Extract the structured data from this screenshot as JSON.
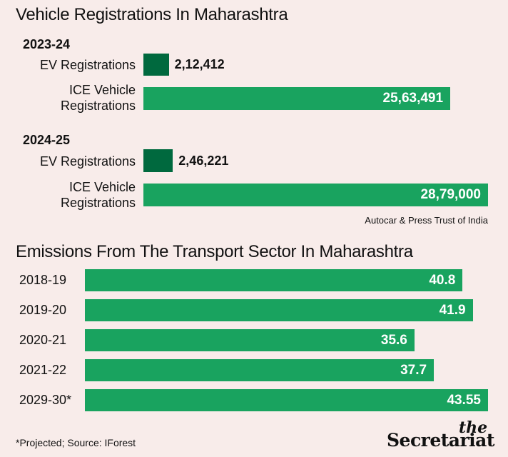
{
  "chart_data": [
    {
      "type": "bar",
      "title": "Vehicle Registrations In Maharashtra",
      "groups": [
        {
          "label": "2023-24",
          "bars": [
            {
              "category": "EV Registrations",
              "value": 212412,
              "display": "2,12,412"
            },
            {
              "category_lines": [
                "ICE Vehicle",
                "Registrations"
              ],
              "value": 2563491,
              "display": "25,63,491"
            }
          ]
        },
        {
          "label": "2024-25",
          "bars": [
            {
              "category": "EV Registrations",
              "value": 246221,
              "display": "2,46,221"
            },
            {
              "category_lines": [
                "ICE Vehicle",
                "Registrations"
              ],
              "value": 2879000,
              "display": "28,79,000"
            }
          ]
        }
      ],
      "source": "Autocar & Press Trust of India",
      "colors": {
        "ev": "#00693e",
        "ice": "#19a35f"
      }
    },
    {
      "type": "bar",
      "title": "Emissions From The Transport Sector In Maharashtra",
      "categories": [
        "2018-19",
        "2019-20",
        "2020-21",
        "2021-22",
        "2029-30*"
      ],
      "values": [
        40.8,
        41.9,
        35.6,
        37.7,
        43.55
      ],
      "value_labels": [
        "40.8",
        "41.9",
        "35.6",
        "37.7",
        "43.55"
      ],
      "color": "#19a35f"
    }
  ],
  "footnote": "*Projected; Source: IForest",
  "logo": {
    "the": "the",
    "name": "Secretariat"
  }
}
